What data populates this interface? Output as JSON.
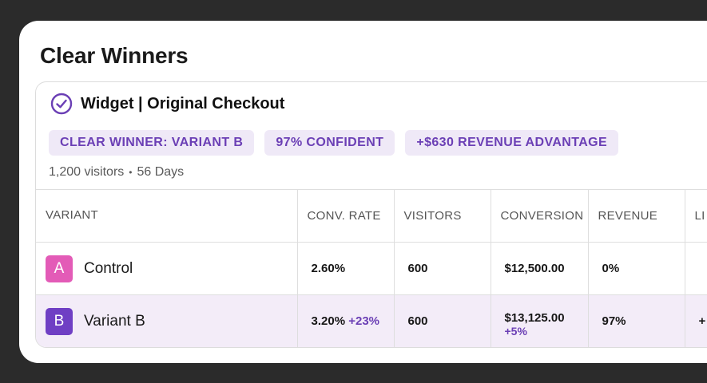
{
  "page_title": "Clear Winners",
  "card": {
    "title": "Widget | Original Checkout",
    "badges": [
      "CLEAR WINNER: VARIANT B",
      "97% CONFIDENT",
      "+$630 REVENUE ADVANTAGE"
    ],
    "visitors": "1,200 visitors",
    "separator": "•",
    "days": "56 Days"
  },
  "table": {
    "headers": [
      "VARIANT",
      "CONV. RATE",
      "VISITORS",
      "CONVERSION",
      "REVENUE",
      "LI"
    ],
    "rows": [
      {
        "letter": "A",
        "name": "Control",
        "conv_rate": "2.60%",
        "conv_lift": "",
        "visitors": "600",
        "conversion": "$12,500.00",
        "conversion_lift": "",
        "revenue": "0%",
        "extra": ""
      },
      {
        "letter": "B",
        "name": "Variant B",
        "conv_rate": "3.20%",
        "conv_lift": "+23%",
        "visitors": "600",
        "conversion": "$13,125.00",
        "conversion_lift": "+5%",
        "revenue": "97%",
        "extra": "+"
      }
    ]
  },
  "colors": {
    "accent": "#6b3fb5",
    "chip_a": "#e35bb7",
    "chip_b": "#6f3fc4",
    "badge_bg": "#efe9f7",
    "row_highlight": "#f3ecf8"
  },
  "icons": {
    "status": "check-circle-icon"
  }
}
